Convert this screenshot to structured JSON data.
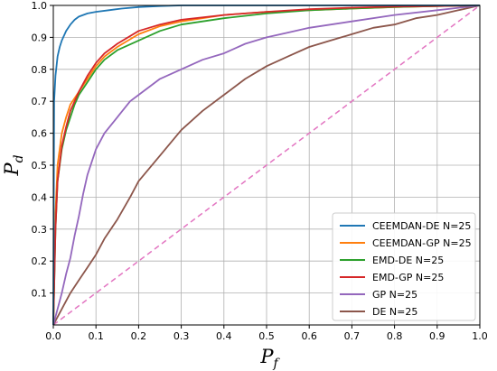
{
  "chart_data": {
    "type": "line",
    "xlabel": {
      "main": "P",
      "sub": "f"
    },
    "ylabel": {
      "main": "P",
      "sub": "d"
    },
    "xlim": [
      0.0,
      1.0
    ],
    "ylim": [
      0.0,
      1.0
    ],
    "xticks": [
      "0.0",
      "0.1",
      "0.2",
      "0.3",
      "0.4",
      "0.5",
      "0.6",
      "0.7",
      "0.8",
      "0.9",
      "1.0"
    ],
    "yticks": [
      "0.1",
      "0.2",
      "0.3",
      "0.4",
      "0.5",
      "0.6",
      "0.7",
      "0.8",
      "0.9",
      "1.0"
    ],
    "grid": true,
    "legend_position": "bottom-right",
    "series": [
      {
        "name": "CEEMDAN-DE N=25",
        "color": "#1f77b4",
        "x": [
          0,
          0.002,
          0.005,
          0.01,
          0.015,
          0.02,
          0.03,
          0.04,
          0.05,
          0.06,
          0.08,
          0.1,
          0.13,
          0.16,
          0.2,
          0.25,
          0.3,
          0.4,
          0.6,
          1.0
        ],
        "y": [
          0,
          0.7,
          0.78,
          0.84,
          0.87,
          0.89,
          0.92,
          0.94,
          0.955,
          0.965,
          0.975,
          0.98,
          0.985,
          0.99,
          0.995,
          0.998,
          1.0,
          1.0,
          1.0,
          1.0
        ]
      },
      {
        "name": "CEEMDAN-GP N=25",
        "color": "#ff7f0e",
        "x": [
          0,
          0.005,
          0.01,
          0.02,
          0.03,
          0.04,
          0.05,
          0.06,
          0.08,
          0.1,
          0.12,
          0.15,
          0.2,
          0.25,
          0.3,
          0.4,
          0.5,
          0.6,
          0.7,
          0.8,
          0.9,
          1.0
        ],
        "y": [
          0,
          0.35,
          0.5,
          0.6,
          0.65,
          0.69,
          0.71,
          0.73,
          0.77,
          0.81,
          0.84,
          0.87,
          0.91,
          0.935,
          0.95,
          0.97,
          0.98,
          0.985,
          0.99,
          0.995,
          0.998,
          1.0
        ]
      },
      {
        "name": "EMD-DE N=25",
        "color": "#2ca02c",
        "x": [
          0,
          0.005,
          0.01,
          0.02,
          0.03,
          0.04,
          0.05,
          0.06,
          0.08,
          0.1,
          0.12,
          0.15,
          0.2,
          0.25,
          0.3,
          0.4,
          0.5,
          0.6,
          0.7,
          0.8,
          0.9,
          1.0
        ],
        "y": [
          0,
          0.3,
          0.45,
          0.55,
          0.61,
          0.65,
          0.69,
          0.72,
          0.76,
          0.8,
          0.83,
          0.86,
          0.89,
          0.92,
          0.94,
          0.96,
          0.975,
          0.985,
          0.99,
          0.995,
          0.998,
          1.0
        ]
      },
      {
        "name": "EMD-GP N=25",
        "color": "#d62728",
        "x": [
          0,
          0.005,
          0.01,
          0.02,
          0.03,
          0.04,
          0.05,
          0.06,
          0.08,
          0.1,
          0.12,
          0.15,
          0.2,
          0.25,
          0.3,
          0.4,
          0.5,
          0.6,
          0.7,
          0.8,
          0.9,
          1.0
        ],
        "y": [
          0,
          0.3,
          0.45,
          0.56,
          0.62,
          0.67,
          0.7,
          0.73,
          0.78,
          0.82,
          0.85,
          0.88,
          0.92,
          0.94,
          0.955,
          0.97,
          0.98,
          0.988,
          0.993,
          0.996,
          0.998,
          1.0
        ]
      },
      {
        "name": "GP N=25",
        "color": "#9467bd",
        "x": [
          0,
          0.01,
          0.02,
          0.03,
          0.04,
          0.05,
          0.06,
          0.07,
          0.08,
          0.1,
          0.12,
          0.15,
          0.18,
          0.2,
          0.25,
          0.3,
          0.35,
          0.4,
          0.45,
          0.5,
          0.55,
          0.6,
          0.7,
          0.8,
          0.9,
          1.0
        ],
        "y": [
          0,
          0.05,
          0.1,
          0.16,
          0.21,
          0.28,
          0.34,
          0.41,
          0.47,
          0.55,
          0.6,
          0.65,
          0.7,
          0.72,
          0.77,
          0.8,
          0.83,
          0.85,
          0.88,
          0.9,
          0.915,
          0.93,
          0.95,
          0.97,
          0.985,
          1.0
        ]
      },
      {
        "name": "DE N=25",
        "color": "#8c564b",
        "x": [
          0,
          0.02,
          0.04,
          0.06,
          0.08,
          0.1,
          0.12,
          0.15,
          0.18,
          0.2,
          0.25,
          0.3,
          0.35,
          0.4,
          0.45,
          0.5,
          0.55,
          0.6,
          0.65,
          0.7,
          0.75,
          0.8,
          0.85,
          0.9,
          0.95,
          1.0
        ],
        "y": [
          0,
          0.05,
          0.1,
          0.14,
          0.18,
          0.22,
          0.27,
          0.33,
          0.4,
          0.45,
          0.53,
          0.61,
          0.67,
          0.72,
          0.77,
          0.81,
          0.84,
          0.87,
          0.89,
          0.91,
          0.93,
          0.94,
          0.96,
          0.97,
          0.985,
          1.0
        ]
      },
      {
        "name": "",
        "color": "#e377c2",
        "dashed": true,
        "x": [
          0,
          1.0
        ],
        "y": [
          0,
          1.0
        ]
      }
    ]
  }
}
